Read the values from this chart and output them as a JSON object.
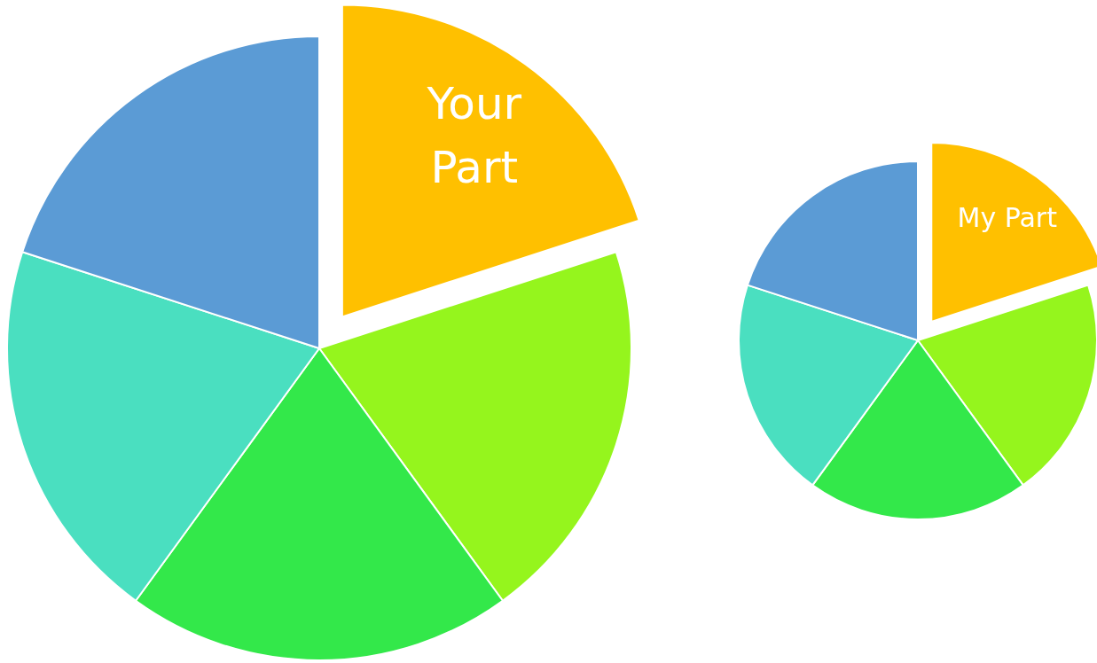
{
  "chart_data": [
    {
      "type": "pie",
      "categories": [
        "Your Part",
        null,
        null,
        null,
        null
      ],
      "values": [
        20,
        20,
        20,
        20,
        20
      ],
      "colors": [
        "#ffc000",
        "#95f51d",
        "#33e84a",
        "#4adfc0",
        "#5b9bd5"
      ]
    },
    {
      "type": "pie",
      "categories": [
        "My Part",
        null,
        null,
        null,
        null
      ],
      "values": [
        20,
        20,
        20,
        20,
        20
      ],
      "colors": [
        "#ffc000",
        "#95f51d",
        "#33e84a",
        "#4adfc0",
        "#5b9bd5"
      ]
    }
  ]
}
